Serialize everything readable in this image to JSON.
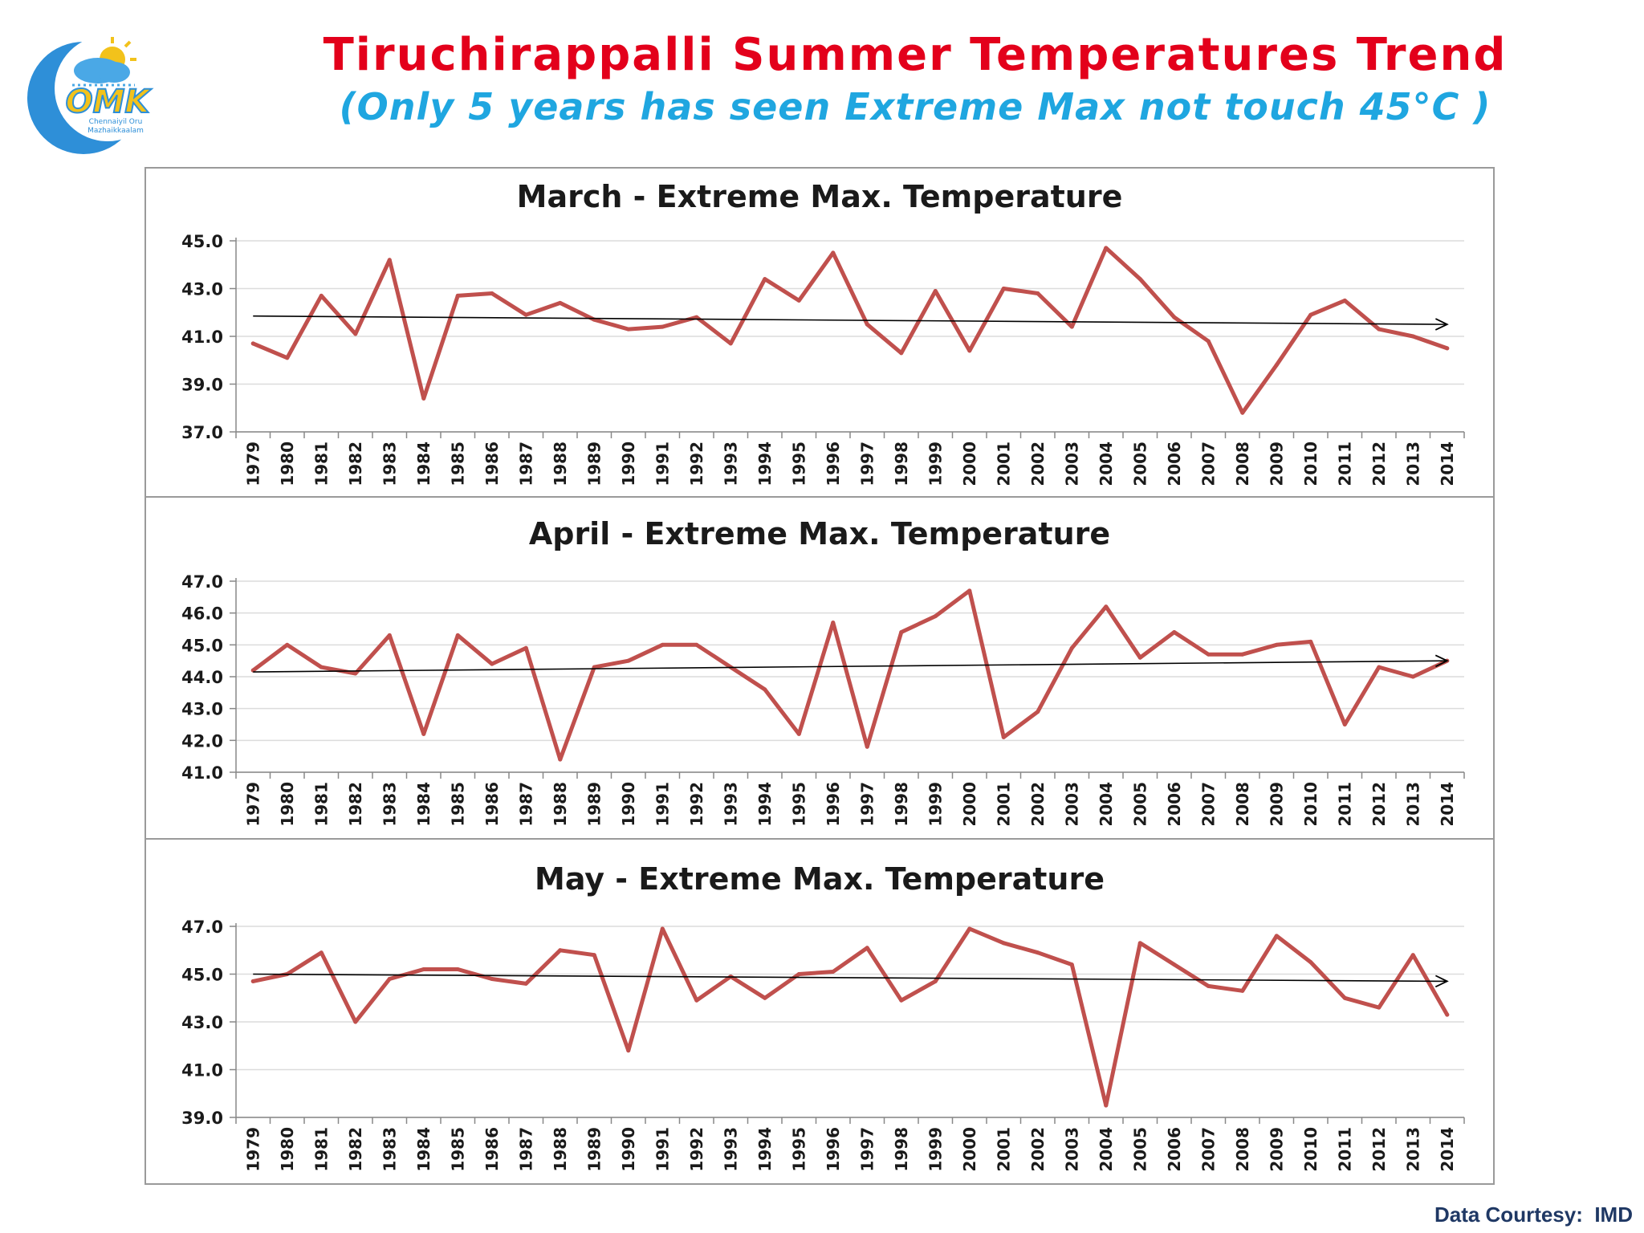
{
  "title": "Tiruchirappalli Summer Temperatures Trend",
  "subtitle": "(Only 5 years has seen Extreme Max not touch 45°C )",
  "logo": {
    "text": "OMK",
    "tagline_1": "Chennaiyil Oru",
    "tagline_2": "Mazhaikkaalam"
  },
  "footer": "Data Courtesy:  IMD",
  "colors": {
    "title": "#e3001b",
    "subtitle": "#1fa6e0",
    "series": "#c0504d",
    "trend": "#000000",
    "footer": "#1f3864"
  },
  "chart_data": [
    {
      "type": "line",
      "title": "March - Extreme Max. Temperature",
      "categories": [
        "1979",
        "1980",
        "1981",
        "1982",
        "1983",
        "1984",
        "1985",
        "1986",
        "1987",
        "1988",
        "1989",
        "1990",
        "1991",
        "1992",
        "1993",
        "1994",
        "1995",
        "1996",
        "1997",
        "1998",
        "1999",
        "2000",
        "2001",
        "2002",
        "2003",
        "2004",
        "2005",
        "2006",
        "2007",
        "2008",
        "2009",
        "2010",
        "2011",
        "2012",
        "2013",
        "2014"
      ],
      "values": [
        40.7,
        40.1,
        42.7,
        41.1,
        44.2,
        38.4,
        42.7,
        42.8,
        41.9,
        42.4,
        41.7,
        41.3,
        41.4,
        41.8,
        40.7,
        43.4,
        42.5,
        44.5,
        41.5,
        40.3,
        42.9,
        40.4,
        43.0,
        42.8,
        41.4,
        44.7,
        43.4,
        41.8,
        40.8,
        37.8,
        39.8,
        41.9,
        42.5,
        41.3,
        41.0,
        40.5
      ],
      "trend": {
        "start": 41.85,
        "end": 41.5
      },
      "yticks": [
        "45.0",
        "43.0",
        "41.0",
        "39.0",
        "37.0"
      ],
      "ylim": [
        37,
        45
      ],
      "grid": "horizontal"
    },
    {
      "type": "line",
      "title": "April - Extreme Max. Temperature",
      "categories": [
        "1979",
        "1980",
        "1981",
        "1982",
        "1983",
        "1984",
        "1985",
        "1986",
        "1987",
        "1988",
        "1989",
        "1990",
        "1991",
        "1992",
        "1993",
        "1994",
        "1995",
        "1996",
        "1997",
        "1998",
        "1999",
        "2000",
        "2001",
        "2002",
        "2003",
        "2004",
        "2005",
        "2006",
        "2007",
        "2008",
        "2009",
        "2010",
        "2011",
        "2012",
        "2013",
        "2014"
      ],
      "values": [
        44.2,
        45.0,
        44.3,
        44.1,
        45.3,
        42.2,
        45.3,
        44.4,
        44.9,
        41.4,
        44.3,
        44.5,
        45.0,
        45.0,
        44.3,
        43.6,
        42.2,
        45.7,
        41.8,
        45.4,
        45.9,
        46.7,
        42.1,
        42.9,
        44.9,
        46.2,
        44.6,
        45.4,
        44.7,
        44.7,
        45.0,
        45.1,
        42.5,
        44.3,
        44.0,
        44.5
      ],
      "trend": {
        "start": 44.15,
        "end": 44.5
      },
      "yticks": [
        "47.0",
        "46.0",
        "45.0",
        "44.0",
        "43.0",
        "42.0",
        "41.0"
      ],
      "ylim": [
        41,
        47
      ],
      "grid": "horizontal"
    },
    {
      "type": "line",
      "title": "May -  Extreme Max. Temperature",
      "categories": [
        "1979",
        "1980",
        "1981",
        "1982",
        "1983",
        "1984",
        "1985",
        "1986",
        "1987",
        "1988",
        "1989",
        "1990",
        "1991",
        "1992",
        "1993",
        "1994",
        "1995",
        "1996",
        "1997",
        "1998",
        "1999",
        "2000",
        "2001",
        "2002",
        "2003",
        "2004",
        "2005",
        "2006",
        "2007",
        "2008",
        "2009",
        "2010",
        "2011",
        "2012",
        "2013",
        "2014"
      ],
      "values": [
        44.7,
        45.0,
        45.9,
        43.0,
        44.8,
        45.2,
        45.2,
        44.8,
        44.6,
        46.0,
        45.8,
        41.8,
        46.9,
        43.9,
        44.9,
        44.0,
        45.0,
        45.1,
        46.1,
        43.9,
        44.7,
        46.9,
        46.3,
        45.9,
        45.4,
        39.5,
        46.3,
        45.4,
        44.5,
        44.3,
        46.6,
        45.5,
        44.0,
        43.6,
        45.8,
        43.3
      ],
      "trend": {
        "start": 45.0,
        "end": 44.7
      },
      "yticks": [
        "47.0",
        "45.0",
        "43.0",
        "41.0",
        "39.0"
      ],
      "ylim": [
        39,
        47
      ],
      "grid": "horizontal"
    }
  ]
}
